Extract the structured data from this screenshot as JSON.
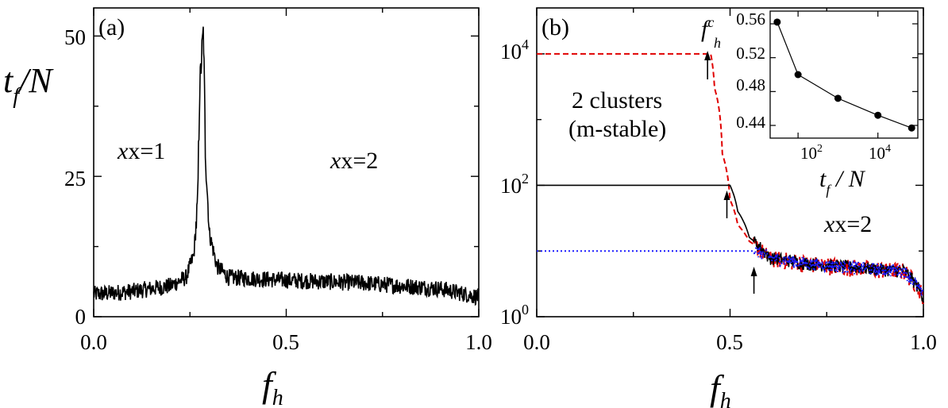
{
  "figure": {
    "panel_a_label": "(a)",
    "panel_b_label": "(b)",
    "shared_xlabel_f": "f",
    "shared_xlabel_sub": "h",
    "panel_a_ylabel_t": "t",
    "panel_a_ylabel_sub": "f",
    "panel_a_ylabel_tail": "/N",
    "annot_x1": "x=1",
    "annot_x2_a": "x=2",
    "annot_x2_b": "x=2",
    "annot_clusters_line1": "2 clusters",
    "annot_clusters_line2": "(m-stable)",
    "inset_ylabel_f": "f",
    "inset_ylabel_sub": "h",
    "inset_ylabel_sup": "c",
    "inset_xlabel_t": "t",
    "inset_xlabel_sub": "f",
    "inset_xlabel_tail": " / N",
    "colors": {
      "black": "#000000",
      "red": "#e00000",
      "blue": "#1a1aff"
    }
  },
  "chart_data": [
    {
      "panel": "(a)",
      "type": "line",
      "xlabel": "f_h",
      "ylabel": "t_f/N",
      "xlim": [
        0.0,
        1.0
      ],
      "ylim": [
        0,
        55
      ],
      "xticks": [
        "0.0",
        "0.5",
        "1.0"
      ],
      "yticks": [
        "0",
        "25",
        "50"
      ],
      "grid": false,
      "series": [
        {
          "color": "#000000",
          "baseline": [
            [
              0.0,
              4
            ],
            [
              0.1,
              4.5
            ],
            [
              0.2,
              5.5
            ],
            [
              0.24,
              7
            ],
            [
              0.26,
              11
            ],
            [
              0.27,
              20
            ],
            [
              0.275,
              40
            ],
            [
              0.28,
              46
            ],
            [
              0.285,
              51
            ],
            [
              0.29,
              30
            ],
            [
              0.3,
              15
            ],
            [
              0.32,
              9
            ],
            [
              0.35,
              7
            ],
            [
              0.5,
              6.5
            ],
            [
              0.7,
              6
            ],
            [
              0.9,
              5
            ],
            [
              1.0,
              3.5
            ]
          ],
          "noise_amplitude": 1.5
        }
      ]
    },
    {
      "panel": "(b)",
      "type": "line",
      "xlabel": "f_h",
      "ylabel": "",
      "xlim": [
        0.0,
        1.0
      ],
      "ylim": [
        1,
        50000
      ],
      "yscale": "log",
      "xticks": [
        "0.0",
        "0.5",
        "1.0"
      ],
      "yticks": [
        "10^0",
        "10^2",
        "10^4"
      ],
      "grid": false,
      "series": [
        {
          "color": "#e00000",
          "linestyle": "dashed",
          "plateau": 10000,
          "baseline": [
            [
              0.0,
              10000
            ],
            [
              0.45,
              10000
            ],
            [
              0.46,
              3000
            ],
            [
              0.48,
              300
            ],
            [
              0.5,
              60
            ],
            [
              0.52,
              25
            ],
            [
              0.55,
              14
            ],
            [
              0.6,
              8
            ],
            [
              0.7,
              6.5
            ],
            [
              0.85,
              5.5
            ],
            [
              0.95,
              5
            ],
            [
              1.0,
              2
            ]
          ]
        },
        {
          "color": "#000000",
          "linestyle": "solid",
          "plateau": 100,
          "baseline": [
            [
              0.0,
              100
            ],
            [
              0.5,
              100
            ],
            [
              0.52,
              40
            ],
            [
              0.55,
              16
            ],
            [
              0.6,
              8
            ],
            [
              0.7,
              6.5
            ],
            [
              0.85,
              5.5
            ],
            [
              0.95,
              5
            ],
            [
              1.0,
              2
            ]
          ]
        },
        {
          "color": "#1a1aff",
          "linestyle": "dotted",
          "plateau": 10,
          "baseline": [
            [
              0.0,
              10
            ],
            [
              0.57,
              10
            ],
            [
              0.6,
              8
            ],
            [
              0.7,
              6.5
            ],
            [
              0.85,
              5.5
            ],
            [
              0.95,
              5
            ],
            [
              1.0,
              2
            ]
          ]
        }
      ],
      "arrows_at": [
        [
          0.45,
          10000
        ],
        [
          0.5,
          100
        ],
        [
          0.57,
          10
        ]
      ]
    },
    {
      "panel": "(b) inset",
      "type": "line",
      "xlabel": "t_f / N",
      "ylabel": "f_h^c",
      "xscale": "log",
      "xlim": [
        20,
        100000
      ],
      "ylim": [
        0.425,
        0.575
      ],
      "xticks": [
        "10^2",
        "10^4"
      ],
      "yticks": [
        "0.44",
        "0.48",
        "0.52",
        "0.56"
      ],
      "series": [
        {
          "color": "#000000",
          "marker": "circle",
          "x": [
            30,
            100,
            1000,
            10000,
            70000
          ],
          "y": [
            0.562,
            0.5,
            0.472,
            0.452,
            0.437
          ]
        }
      ]
    }
  ]
}
